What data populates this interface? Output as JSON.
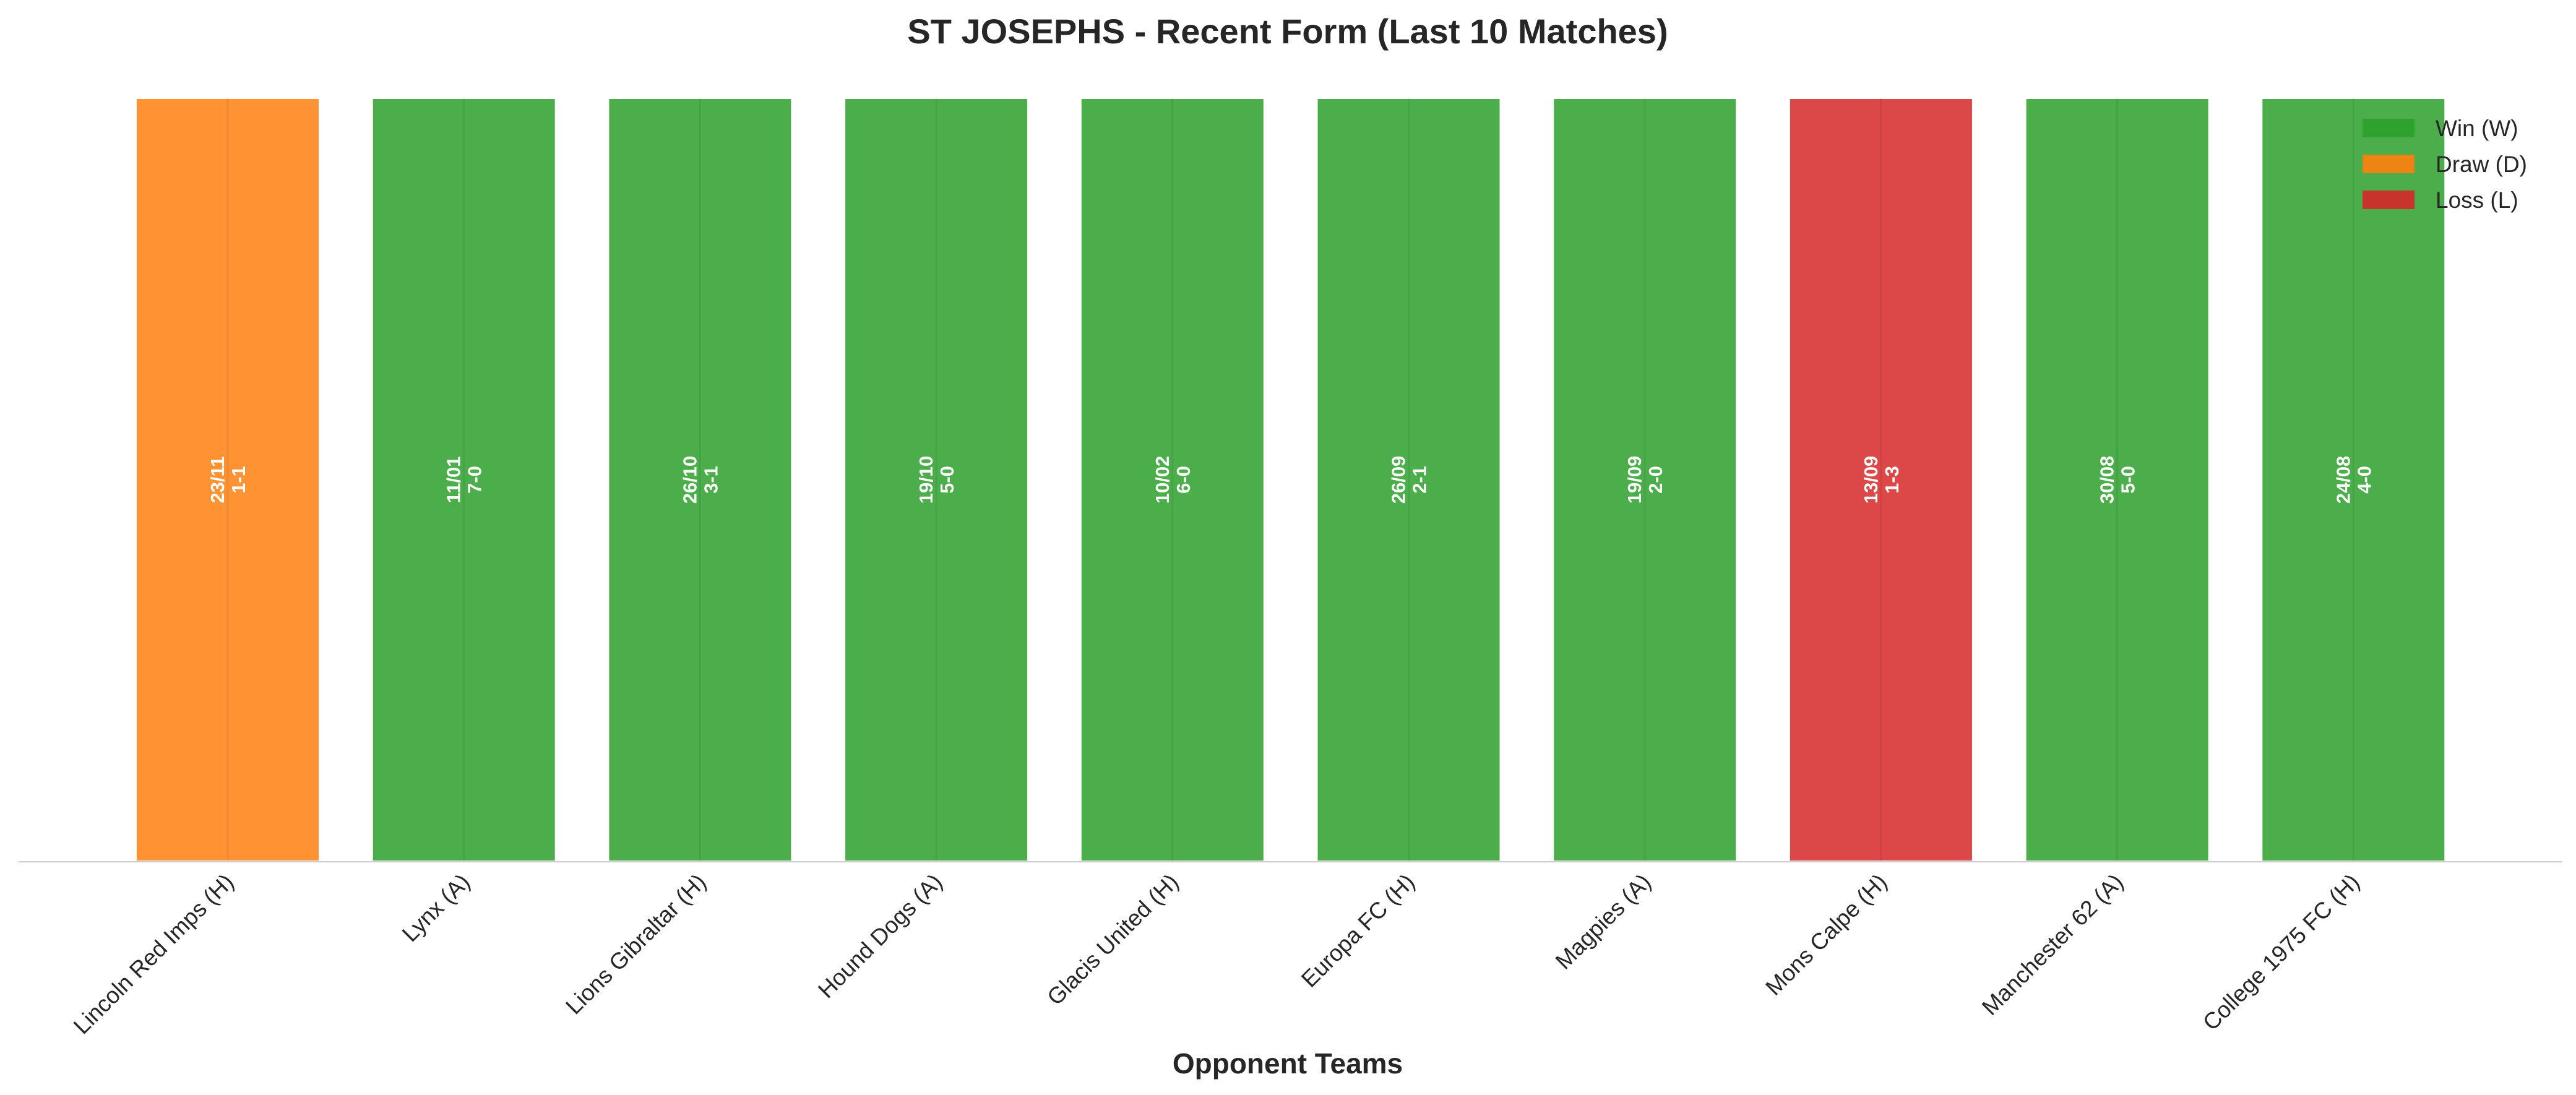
{
  "chart_data": {
    "type": "bar",
    "title": "ST JOSEPHS - Recent Form (Last 10 Matches)",
    "xlabel": "Opponent Teams",
    "ylabel": "",
    "ylim": [
      0,
      1
    ],
    "grid": false,
    "legend_position": "top-right",
    "colors": {
      "W": "#2ca02c",
      "D": "#ff7f0e",
      "L": "#d62728"
    },
    "legend": [
      {
        "key": "W",
        "label": "Win (W)"
      },
      {
        "key": "D",
        "label": "Draw (D)"
      },
      {
        "key": "L",
        "label": "Loss (L)"
      }
    ],
    "categories": [
      "Lincoln Red Imps (H)",
      "Lynx (A)",
      "Lions Gibraltar (H)",
      "Hound Dogs (A)",
      "Glacis United (H)",
      "Europa FC (H)",
      "Magpies (A)",
      "Mons Calpe (H)",
      "Manchester 62 (A)",
      "College 1975 FC (H)"
    ],
    "values": [
      1,
      1,
      1,
      1,
      1,
      1,
      1,
      1,
      1,
      1
    ],
    "results": [
      "D",
      "W",
      "W",
      "W",
      "W",
      "W",
      "W",
      "L",
      "W",
      "W"
    ],
    "dates": [
      "23/11",
      "11/01",
      "26/10",
      "19/10",
      "10/02",
      "26/09",
      "19/09",
      "13/09",
      "30/08",
      "24/08"
    ],
    "scores": [
      "1-1",
      "7-0",
      "3-1",
      "5-0",
      "6-0",
      "2-1",
      "2-0",
      "1-3",
      "5-0",
      "4-0"
    ]
  }
}
